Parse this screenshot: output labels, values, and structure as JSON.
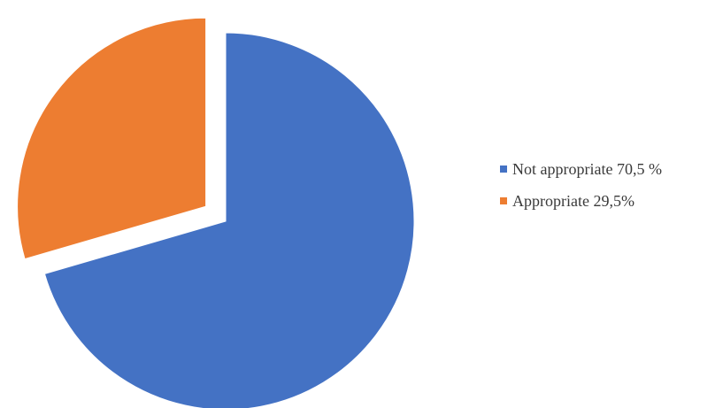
{
  "chart_data": {
    "type": "pie",
    "title": "",
    "slices": [
      {
        "label": "Not appropriate 70,5 %",
        "value": 70.5,
        "color": "#4472C4"
      },
      {
        "label": "Appropriate 29,5%",
        "value": 29.5,
        "color": "#ED7D31"
      }
    ],
    "exploded": [
      "Appropriate 29,5%"
    ],
    "legend_position": "right"
  }
}
